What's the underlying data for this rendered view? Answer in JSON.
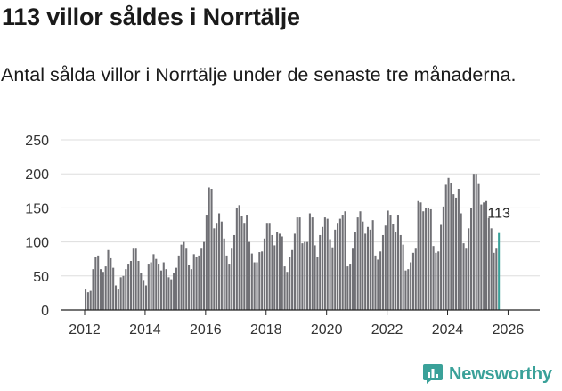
{
  "header": {
    "title": "113 villor såldes i Norrtälje",
    "subtitle": "Antal sålda villor i Norrtälje under de senaste tre månaderna."
  },
  "brand": {
    "name": "Newsworthy",
    "color": "#3aa199"
  },
  "colors": {
    "bar": "#707075",
    "highlight": "#3aa199",
    "grid": "#dddddd",
    "axis": "#222222"
  },
  "chart_data": {
    "type": "bar",
    "title": "113 villor såldes i Norrtälje",
    "subtitle": "Antal sålda villor i Norrtälje under de senaste tre månaderna.",
    "xlabel": "",
    "ylabel": "",
    "ylim": [
      0,
      250
    ],
    "yticks": [
      0,
      50,
      100,
      150,
      200,
      250
    ],
    "xticks": [
      2012,
      2014,
      2016,
      2018,
      2020,
      2022,
      2024,
      2026
    ],
    "start": {
      "year": 2012,
      "month": 1
    },
    "grid": true,
    "legend": "none",
    "annotation": {
      "label": "113",
      "target": "last"
    },
    "values": [
      30,
      26,
      28,
      60,
      78,
      80,
      60,
      56,
      64,
      88,
      76,
      62,
      36,
      30,
      48,
      50,
      60,
      68,
      72,
      90,
      90,
      72,
      54,
      44,
      36,
      68,
      70,
      82,
      75,
      68,
      58,
      70,
      60,
      48,
      45,
      55,
      62,
      80,
      96,
      100,
      90,
      66,
      60,
      82,
      78,
      80,
      90,
      100,
      140,
      180,
      178,
      120,
      128,
      142,
      130,
      105,
      80,
      68,
      90,
      110,
      150,
      154,
      138,
      128,
      140,
      100,
      83,
      70,
      70,
      85,
      86,
      105,
      128,
      128,
      110,
      95,
      114,
      112,
      108,
      64,
      56,
      78,
      88,
      112,
      136,
      136,
      98,
      100,
      100,
      142,
      136,
      95,
      78,
      110,
      122,
      136,
      134,
      104,
      92,
      118,
      128,
      134,
      140,
      145,
      64,
      68,
      90,
      115,
      136,
      145,
      130,
      112,
      122,
      118,
      132,
      80,
      74,
      86,
      110,
      124,
      146,
      140,
      126,
      114,
      140,
      110,
      96,
      58,
      60,
      70,
      84,
      90,
      160,
      158,
      145,
      150,
      150,
      148,
      94,
      84,
      86,
      125,
      152,
      184,
      194,
      186,
      170,
      165,
      178,
      142,
      98,
      90,
      120,
      150,
      200,
      200,
      185,
      155,
      158,
      160,
      135,
      120,
      84,
      90,
      113
    ]
  }
}
